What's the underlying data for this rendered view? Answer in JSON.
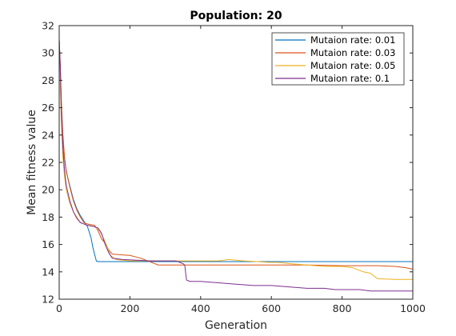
{
  "chart_data": {
    "type": "line",
    "title": "Population: 20",
    "xlabel": "Generation",
    "ylabel": "Mean fitness value",
    "xlim": [
      0,
      1000
    ],
    "ylim": [
      12,
      32
    ],
    "xticks": [
      0,
      200,
      400,
      600,
      800,
      1000
    ],
    "yticks": [
      12,
      14,
      16,
      18,
      20,
      22,
      24,
      26,
      28,
      30,
      32
    ],
    "grid": false,
    "legend_position": "top-right",
    "series": [
      {
        "name": "Mutaion rate: 0.01",
        "color": "#0072BD",
        "points": [
          [
            0,
            31.0
          ],
          [
            3,
            29.0
          ],
          [
            6,
            26.2
          ],
          [
            10,
            24.0
          ],
          [
            15,
            22.3
          ],
          [
            20,
            21.3
          ],
          [
            30,
            20.3
          ],
          [
            40,
            19.3
          ],
          [
            50,
            18.6
          ],
          [
            60,
            18.1
          ],
          [
            70,
            17.7
          ],
          [
            80,
            17.3
          ],
          [
            90,
            16.5
          ],
          [
            95,
            15.8
          ],
          [
            100,
            15.3
          ],
          [
            105,
            14.8
          ],
          [
            110,
            14.75
          ],
          [
            1000,
            14.75
          ]
        ]
      },
      {
        "name": "Mutaion rate: 0.03",
        "color": "#D95319",
        "points": [
          [
            0,
            31.0
          ],
          [
            3,
            29.2
          ],
          [
            6,
            26.5
          ],
          [
            10,
            24.2
          ],
          [
            15,
            22.4
          ],
          [
            20,
            21.4
          ],
          [
            30,
            20.2
          ],
          [
            40,
            19.2
          ],
          [
            50,
            18.5
          ],
          [
            60,
            18.0
          ],
          [
            70,
            17.6
          ],
          [
            80,
            17.5
          ],
          [
            100,
            17.4
          ],
          [
            110,
            17.0
          ],
          [
            120,
            16.4
          ],
          [
            130,
            16.1
          ],
          [
            140,
            15.6
          ],
          [
            150,
            15.3
          ],
          [
            170,
            15.25
          ],
          [
            200,
            15.2
          ],
          [
            230,
            15.0
          ],
          [
            260,
            14.7
          ],
          [
            280,
            14.5
          ],
          [
            300,
            14.5
          ],
          [
            400,
            14.5
          ],
          [
            500,
            14.5
          ],
          [
            600,
            14.5
          ],
          [
            700,
            14.5
          ],
          [
            800,
            14.45
          ],
          [
            900,
            14.45
          ],
          [
            950,
            14.4
          ],
          [
            980,
            14.3
          ],
          [
            1000,
            14.2
          ]
        ]
      },
      {
        "name": "Mutaion rate: 0.05",
        "color": "#EDB120",
        "points": [
          [
            0,
            31.0
          ],
          [
            3,
            28.0
          ],
          [
            6,
            25.0
          ],
          [
            10,
            22.5
          ],
          [
            15,
            21.0
          ],
          [
            20,
            20.0
          ],
          [
            30,
            19.0
          ],
          [
            40,
            18.4
          ],
          [
            50,
            18.0
          ],
          [
            60,
            17.6
          ],
          [
            80,
            17.4
          ],
          [
            100,
            17.3
          ],
          [
            115,
            17.0
          ],
          [
            130,
            16.2
          ],
          [
            145,
            15.2
          ],
          [
            160,
            14.9
          ],
          [
            200,
            14.8
          ],
          [
            250,
            14.8
          ],
          [
            300,
            14.8
          ],
          [
            400,
            14.8
          ],
          [
            450,
            14.8
          ],
          [
            480,
            14.9
          ],
          [
            520,
            14.8
          ],
          [
            560,
            14.75
          ],
          [
            590,
            14.7
          ],
          [
            620,
            14.7
          ],
          [
            650,
            14.6
          ],
          [
            700,
            14.5
          ],
          [
            750,
            14.4
          ],
          [
            800,
            14.4
          ],
          [
            830,
            14.3
          ],
          [
            860,
            14.0
          ],
          [
            880,
            13.9
          ],
          [
            900,
            13.5
          ],
          [
            950,
            13.45
          ],
          [
            1000,
            13.45
          ]
        ]
      },
      {
        "name": "Mutaion rate: 0.1",
        "color": "#7E2F8E",
        "points": [
          [
            0,
            31.0
          ],
          [
            3,
            29.0
          ],
          [
            6,
            25.8
          ],
          [
            10,
            23.2
          ],
          [
            15,
            21.4
          ],
          [
            20,
            20.3
          ],
          [
            30,
            19.2
          ],
          [
            40,
            18.4
          ],
          [
            50,
            17.9
          ],
          [
            60,
            17.6
          ],
          [
            80,
            17.4
          ],
          [
            100,
            17.3
          ],
          [
            110,
            17.2
          ],
          [
            120,
            16.8
          ],
          [
            130,
            16.0
          ],
          [
            140,
            15.4
          ],
          [
            150,
            15.0
          ],
          [
            180,
            14.9
          ],
          [
            220,
            14.85
          ],
          [
            260,
            14.8
          ],
          [
            300,
            14.8
          ],
          [
            330,
            14.8
          ],
          [
            350,
            14.6
          ],
          [
            355,
            14.5
          ],
          [
            360,
            13.4
          ],
          [
            370,
            13.3
          ],
          [
            400,
            13.3
          ],
          [
            450,
            13.2
          ],
          [
            500,
            13.1
          ],
          [
            550,
            13.0
          ],
          [
            600,
            13.0
          ],
          [
            650,
            12.9
          ],
          [
            700,
            12.8
          ],
          [
            750,
            12.8
          ],
          [
            780,
            12.7
          ],
          [
            850,
            12.7
          ],
          [
            880,
            12.6
          ],
          [
            1000,
            12.6
          ]
        ]
      }
    ]
  }
}
